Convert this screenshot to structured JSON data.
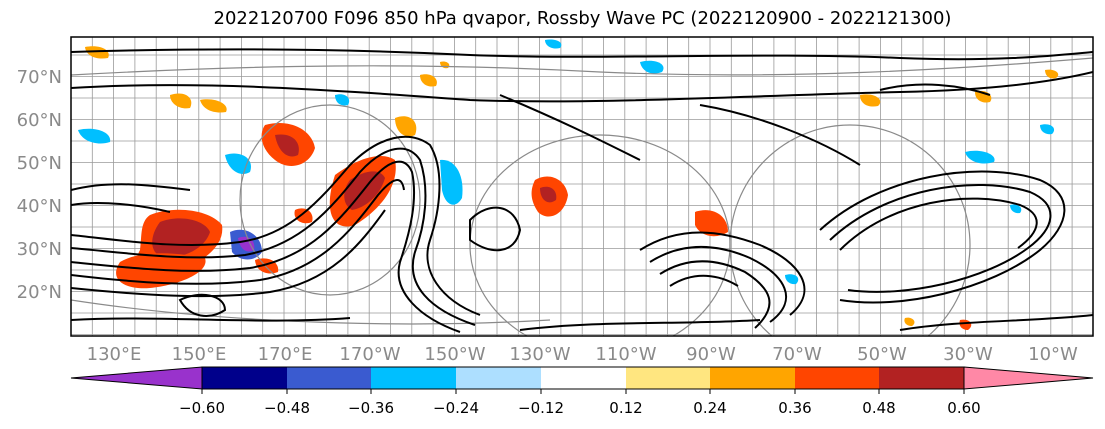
{
  "title": "2022120700 F096 850 hPa qvapor, Rossby Wave PC (2022120900 - 2022121300)",
  "lat_labels": [
    "70°N",
    "60°N",
    "50°N",
    "40°N",
    "30°N",
    "20°N"
  ],
  "lon_labels": [
    "130°E",
    "150°E",
    "170°E",
    "170°W",
    "150°W",
    "130°W",
    "110°W",
    "90°W",
    "70°W",
    "50°W",
    "30°W",
    "10°W"
  ],
  "colorbar": {
    "colors": [
      "#9932cc",
      "#00008b",
      "#3a5bd0",
      "#00bfff",
      "#addfff",
      "#ffffff",
      "#ffe680",
      "#ffa500",
      "#ff4500",
      "#b22222",
      "#ff88a6"
    ],
    "ticks": [
      "−0.60",
      "−0.48",
      "−0.36",
      "−0.24",
      "−0.12",
      "0.12",
      "0.24",
      "0.36",
      "0.48",
      "0.60"
    ]
  }
}
